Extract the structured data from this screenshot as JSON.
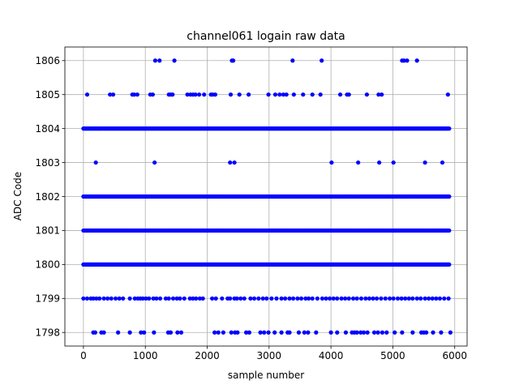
{
  "chart_data": {
    "type": "scatter",
    "title": "channel061 logain raw data",
    "xlabel": "sample number",
    "ylabel": "ADC Code",
    "xlim": [
      -300,
      6200
    ],
    "ylim": [
      1797.6,
      1806.4
    ],
    "xticks": [
      0,
      1000,
      2000,
      3000,
      4000,
      5000,
      6000
    ],
    "yticks": [
      1798,
      1799,
      1800,
      1801,
      1802,
      1803,
      1804,
      1805,
      1806
    ],
    "grid": true,
    "legend": "none",
    "marker_color": "#0000ff",
    "x_range": [
      0,
      5920
    ],
    "dense_levels": [
      1800,
      1801,
      1802,
      1804
    ],
    "series": [
      {
        "level": 1806,
        "x": [
          1160,
          1230,
          1470,
          2400,
          2420,
          3380,
          3850,
          5150,
          5180,
          5230,
          5390
        ]
      },
      {
        "level": 1805,
        "x": [
          60,
          430,
          480,
          790,
          820,
          870,
          1080,
          1120,
          1380,
          1410,
          1440,
          1680,
          1730,
          1770,
          1810,
          1870,
          1950,
          2060,
          2090,
          2130,
          2380,
          2520,
          2670,
          2990,
          3100,
          3170,
          3230,
          3280,
          3400,
          3550,
          3700,
          3830,
          4150,
          4260,
          4290,
          4580,
          4770,
          4820,
          5890
        ]
      },
      {
        "level": 1803,
        "x": [
          200,
          1150,
          2370,
          2440,
          4010,
          4440,
          4780,
          5010,
          5520,
          5800
        ]
      },
      {
        "level": 1799,
        "x": [
          0,
          60,
          120,
          160,
          210,
          260,
          330,
          390,
          450,
          520,
          580,
          640,
          750,
          830,
          880,
          920,
          960,
          1010,
          1060,
          1130,
          1180,
          1240,
          1330,
          1380,
          1450,
          1510,
          1560,
          1630,
          1720,
          1770,
          1820,
          1880,
          1930,
          2080,
          2140,
          2240,
          2330,
          2370,
          2440,
          2480,
          2540,
          2600,
          2700,
          2760,
          2830,
          2900,
          2960,
          3040,
          3120,
          3200,
          3260,
          3330,
          3390,
          3460,
          3520,
          3590,
          3640,
          3700,
          3780,
          3860,
          3920,
          3980,
          4040,
          4100,
          4170,
          4230,
          4290,
          4360,
          4420,
          4490,
          4560,
          4620,
          4680,
          4740,
          4810,
          4880,
          4950,
          5010,
          5080,
          5140,
          5200,
          5260,
          5320,
          5390,
          5450,
          5520,
          5580,
          5640,
          5700,
          5760,
          5830,
          5900
        ]
      },
      {
        "level": 1798,
        "x": [
          160,
          190,
          290,
          330,
          560,
          750,
          930,
          980,
          1140,
          1370,
          1410,
          1520,
          1580,
          2120,
          2180,
          2260,
          2390,
          2450,
          2490,
          2630,
          2680,
          2860,
          2920,
          2990,
          3090,
          3200,
          3300,
          3330,
          3480,
          3570,
          3630,
          3760,
          4000,
          4100,
          4240,
          4340,
          4380,
          4420,
          4480,
          4530,
          4590,
          4700,
          4760,
          4830,
          4900,
          5030,
          5150,
          5320,
          5460,
          5500,
          5540,
          5650,
          5780,
          5930
        ]
      }
    ]
  }
}
